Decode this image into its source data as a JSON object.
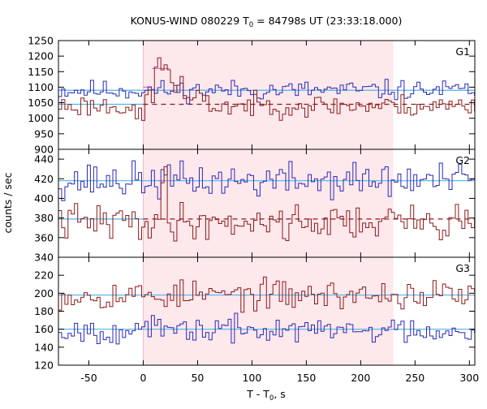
{
  "chart_data": {
    "type": "line",
    "title": {
      "prefix": "KONUS-WIND 080229 T",
      "sub": "0",
      "suffix": " = 84798s UT (23:33:18.000)"
    },
    "xlabel": {
      "prefix": "T - T",
      "sub": "0",
      "suffix": ", s"
    },
    "ylabel": "counts / sec",
    "xlim": [
      -78,
      305
    ],
    "xticks": [
      -50,
      0,
      50,
      100,
      150,
      200,
      250,
      300
    ],
    "tick_labels_x": [
      "-50",
      "0",
      "50",
      "100",
      "150",
      "200",
      "250",
      "300"
    ],
    "shaded_interval": [
      0,
      230
    ],
    "bin_width": 2.944,
    "colors": {
      "upper_series": "#2a2ab5",
      "lower_series": "#8b1a1a",
      "background_fit": "#4fb3e8",
      "burst_fit": "#e064c8",
      "shading": "#fde8ec"
    },
    "panels": [
      {
        "name": "G1",
        "ylim": [
          900,
          1250
        ],
        "yticks": [
          900,
          950,
          1000,
          1050,
          1100,
          1150,
          1200,
          1250
        ],
        "tick_labels_y": [
          "900",
          "950",
          "1000",
          "1050",
          "1100",
          "1150",
          "1200",
          "1250"
        ],
        "series": [
          {
            "role": "upper",
            "x_start": -78,
            "x_end": 305,
            "base": 1090,
            "noise": 16,
            "pulses": [],
            "seed": 11
          },
          {
            "role": "lower",
            "x_start": -78,
            "x_end": 305,
            "base": 1040,
            "noise": 18,
            "pulses": [
              {
                "t0": -8,
                "t1": 0,
                "level": 995
              },
              {
                "t0": 0,
                "t1": 8,
                "level": 1075
              },
              {
                "t0": 8,
                "t1": 24,
                "level": 1165
              },
              {
                "t0": 24,
                "t1": 34,
                "level": 1110
              },
              {
                "t0": 34,
                "t1": 55,
                "level": 1060
              }
            ],
            "seed": 23
          }
        ],
        "fits": [
          {
            "role": "background",
            "x0": -78,
            "x1": 305,
            "y": 1090,
            "dashed": false
          },
          {
            "role": "background",
            "x0": -78,
            "x1": 0,
            "y": 1045,
            "dashed": false
          },
          {
            "role": "burst",
            "x0": 0,
            "x1": 8,
            "y": 1100,
            "dashed": false
          },
          {
            "role": "burst",
            "x0": 8,
            "x1": 24,
            "y": 1160,
            "dashed": false
          },
          {
            "role": "lower-fit",
            "x0": 0,
            "x1": 305,
            "y": 1045,
            "dashed": true
          }
        ]
      },
      {
        "name": "G2",
        "ylim": [
          340,
          450
        ],
        "yticks": [
          340,
          360,
          380,
          400,
          420,
          440
        ],
        "tick_labels_y": [
          "340",
          "360",
          "380",
          "400",
          "420",
          "440"
        ],
        "series": [
          {
            "role": "upper",
            "x_start": -78,
            "x_end": 305,
            "base": 418,
            "noise": 9,
            "pulses": [],
            "seed": 37
          },
          {
            "role": "lower",
            "x_start": -78,
            "x_end": 305,
            "base": 376,
            "noise": 9,
            "pulses": [
              {
                "t0": 14,
                "t1": 22,
                "level": 418
              }
            ],
            "seed": 41
          }
        ],
        "fits": [
          {
            "role": "background",
            "x0": -78,
            "x1": 305,
            "y": 418,
            "dashed": false
          },
          {
            "role": "background",
            "x0": -78,
            "x1": 0,
            "y": 379,
            "dashed": false
          },
          {
            "role": "burst",
            "x0": 14,
            "x1": 20,
            "y": 418,
            "dashed": false
          },
          {
            "role": "lower-fit",
            "x0": 0,
            "x1": 305,
            "y": 379,
            "dashed": true
          }
        ]
      },
      {
        "name": "G3",
        "ylim": [
          120,
          240
        ],
        "yticks": [
          120,
          140,
          160,
          180,
          200,
          220
        ],
        "tick_labels_y": [
          "120",
          "140",
          "160",
          "180",
          "200",
          "220"
        ],
        "series": [
          {
            "role": "lower",
            "x_start": -78,
            "x_end": 305,
            "base": 198,
            "noise": 8,
            "pulses": [],
            "seed": 53
          },
          {
            "role": "upper",
            "x_start": -78,
            "x_end": 305,
            "base": 159,
            "noise": 7,
            "pulses": [],
            "seed": 67
          }
        ],
        "fits": [
          {
            "role": "background",
            "x0": -78,
            "x1": 305,
            "y": 198,
            "dashed": false
          },
          {
            "role": "background",
            "x0": -78,
            "x1": 305,
            "y": 160,
            "dashed": false
          }
        ]
      }
    ]
  }
}
